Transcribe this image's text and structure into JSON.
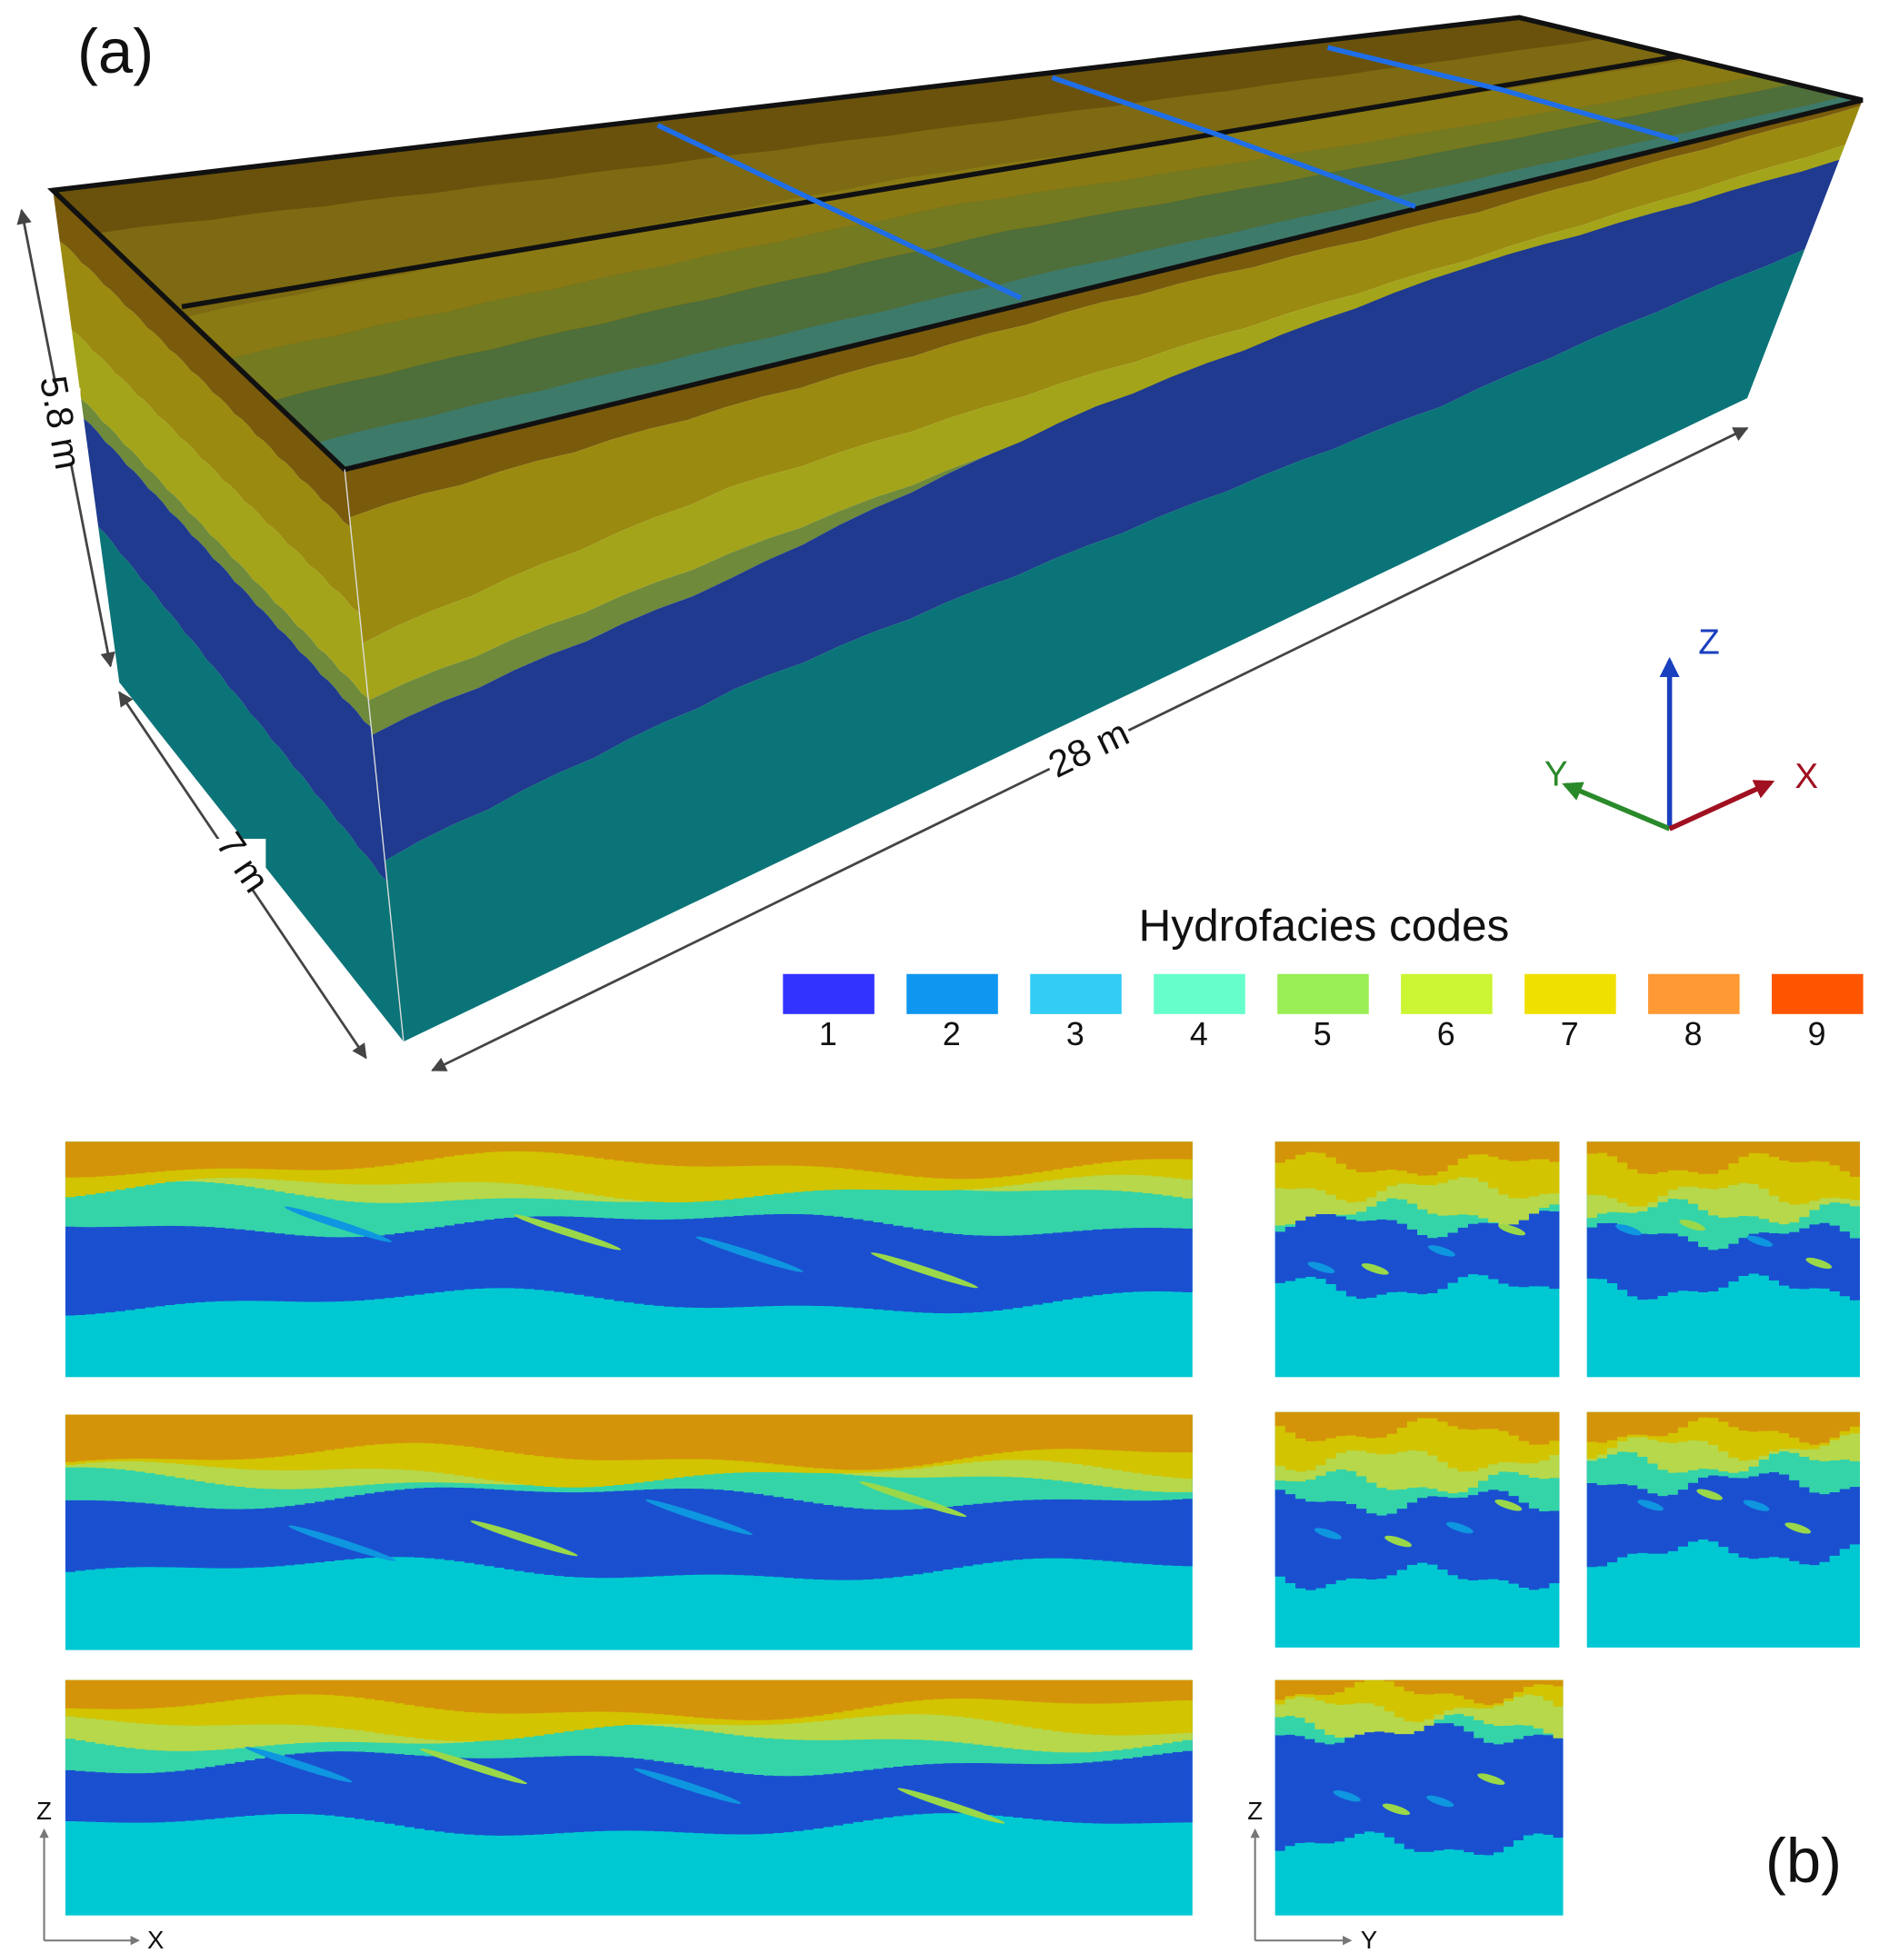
{
  "figure": {
    "panel_a": {
      "label": "(a)",
      "height_label": "5.8 m",
      "width_label": "7 m",
      "length_label": "28 m",
      "axes": {
        "z": "Z",
        "y": "Y",
        "x": "X"
      }
    },
    "legend": {
      "title": "Hydrofacies codes",
      "items": [
        {
          "code": 1,
          "color": "#3333ff"
        },
        {
          "code": 2,
          "color": "#0f96f0"
        },
        {
          "code": 3,
          "color": "#33ccf5"
        },
        {
          "code": 4,
          "color": "#66ffcc"
        },
        {
          "code": 5,
          "color": "#99ee55"
        },
        {
          "code": 6,
          "color": "#ccf533"
        },
        {
          "code": 7,
          "color": "#f0e000"
        },
        {
          "code": 8,
          "color": "#ff9933"
        },
        {
          "code": 9,
          "color": "#ff5500"
        }
      ]
    },
    "panel_b": {
      "label": "(b)",
      "x_section_axes": {
        "z": "Z",
        "x": "X"
      },
      "y_section_axes": {
        "z": "Z",
        "y": "Y"
      }
    }
  }
}
